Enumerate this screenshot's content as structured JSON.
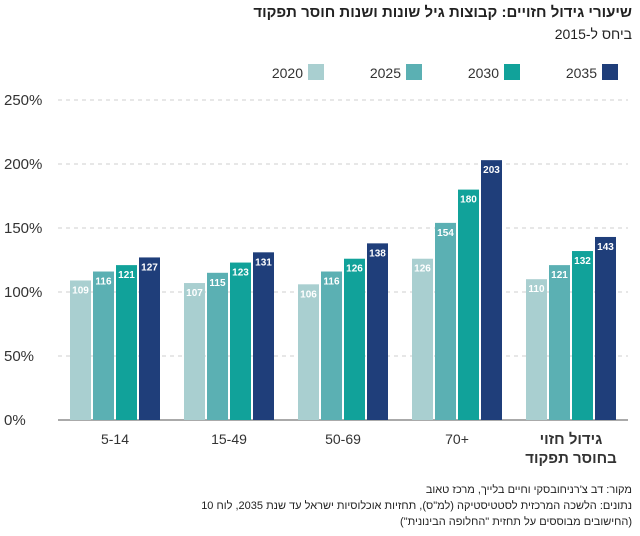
{
  "header": {
    "title": "שיעורי גידול חזויים: קבוצות גיל שונות ושנות חוסר תפקוד",
    "subtitle": "ביחס ל-2015"
  },
  "source": {
    "line1": "מקור: דב צ'רניחובסקי וחיים בלייך, מרכז טאוב",
    "line2": "נתונים: הלשכה המרכזית לסטטיסטיקה (למ\"ס), תחזיות אוכלוסיות ישראל עד שנת 2035, לוח 10",
    "line3": "(החישובים מבוססים על תחזית \"החלופה הבינונית\")"
  },
  "chart_data": {
    "type": "bar",
    "title": "שיעורי גידול חזויים: קבוצות גיל שונות ושנות חוסר תפקוד",
    "subtitle": "ביחס ל-2015",
    "categories": [
      "5-14",
      "15-49",
      "50-69",
      "70+",
      "גידול חזוי בחוסר תפקוד"
    ],
    "category_lines": [
      [
        "5-14"
      ],
      [
        "15-49"
      ],
      [
        "50-69"
      ],
      [
        "70+"
      ],
      [
        "גידול חזוי",
        "בחוסר תפקוד"
      ]
    ],
    "series": [
      {
        "name": "2020",
        "color": "#a9cfd0",
        "values": [
          109,
          107,
          106,
          126,
          110
        ]
      },
      {
        "name": "2025",
        "color": "#5bb0b3",
        "values": [
          116,
          115,
          116,
          154,
          121
        ]
      },
      {
        "name": "2030",
        "color": "#11a29a",
        "values": [
          121,
          123,
          126,
          180,
          132
        ]
      },
      {
        "name": "2035",
        "color": "#1f3e7a",
        "values": [
          127,
          131,
          138,
          203,
          143
        ]
      }
    ],
    "yticks": [
      "0%",
      "50%",
      "100%",
      "150%",
      "200%",
      "250%"
    ],
    "ylim": [
      0,
      250
    ],
    "grid": true,
    "legend_position": "top"
  }
}
